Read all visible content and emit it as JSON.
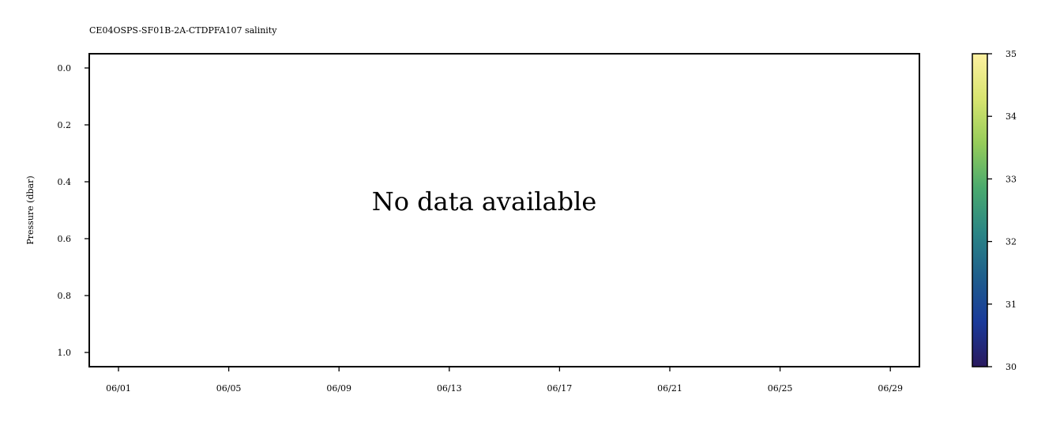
{
  "chart_data": {
    "type": "heatmap",
    "title": "CE04OSPS-SF01B-2A-CTDPFA107 salinity",
    "xlabel": "",
    "ylabel": "Pressure (dbar)",
    "annotation": "No data available",
    "x_tick_labels": [
      "06/01",
      "06/05",
      "06/09",
      "06/13",
      "06/17",
      "06/21",
      "06/25",
      "06/29"
    ],
    "y_ticks": [
      0.0,
      0.2,
      0.4,
      0.6,
      0.8,
      1.0
    ],
    "y_tick_labels": [
      "0.0",
      "0.2",
      "0.4",
      "0.6",
      "0.8",
      "1.0"
    ],
    "ylim": [
      1.05,
      -0.05
    ],
    "y_inverted": true,
    "grid": false,
    "values": [],
    "colorbar": {
      "range": [
        30,
        35
      ],
      "ticks": [
        30,
        31,
        32,
        33,
        34,
        35
      ],
      "tick_labels": [
        "30",
        "31",
        "32",
        "33",
        "34",
        "35"
      ],
      "colormap_stops": [
        "#2a1a5e",
        "#1a3a9a",
        "#1e5e8c",
        "#2a8585",
        "#4aaa6e",
        "#96cc5a",
        "#d8e470",
        "#fdf0a0"
      ]
    }
  }
}
